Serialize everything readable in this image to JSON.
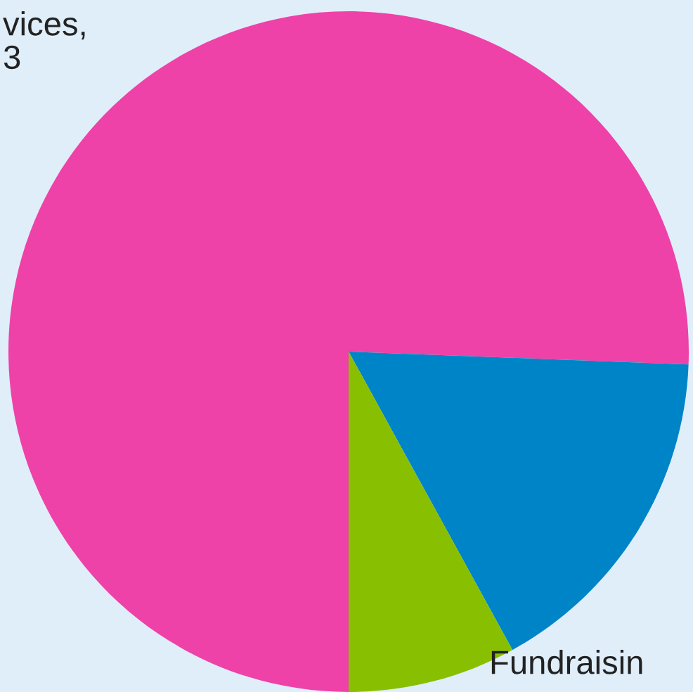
{
  "chart_data": {
    "type": "pie",
    "categories": [
      "vices,\n3",
      "Fundraisin",
      null
    ],
    "values": [
      75.6,
      16.4,
      8.0
    ],
    "colors": [
      "#ee42a8",
      "#0084c8",
      "#88bf00"
    ]
  }
}
